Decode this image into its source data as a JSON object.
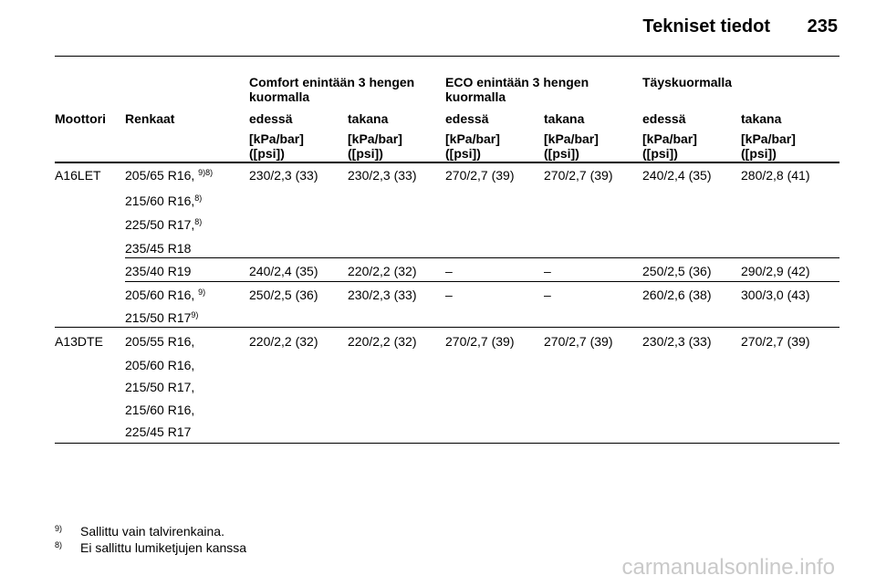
{
  "header": {
    "title": "Tekniset tiedot",
    "page_number": "235"
  },
  "table": {
    "group_headers": [
      "Comfort enintään 3 hengen kuormalla",
      "ECO enintään 3 hengen kuormalla",
      "Täyskuormalla"
    ],
    "col_labels": [
      "Moottori",
      "Renkaat",
      "edessä",
      "takana",
      "edessä",
      "takana",
      "edessä",
      "takana"
    ],
    "unit_label": "[kPa/bar] ([psi])",
    "rows": [
      {
        "engine": "A16LET",
        "tyres": [
          {
            "text": "205/65 R16, ",
            "sup": "9)8)"
          },
          {
            "text": "215/60 R16,",
            "sup": "8)"
          },
          {
            "text": "225/50 R17,",
            "sup": "8)"
          },
          {
            "text": "235/45 R18",
            "sup": ""
          }
        ],
        "values": [
          "230/2,3 (33)",
          "230/2,3 (33)",
          "270/2,7 (39)",
          "270/2,7 (39)",
          "240/2,4 (35)",
          "280/2,8 (41)"
        ]
      },
      {
        "engine": "",
        "tyres": [
          {
            "text": "235/40 R19",
            "sup": ""
          }
        ],
        "values": [
          "240/2,4 (35)",
          "220/2,2 (32)",
          "–",
          "–",
          "250/2,5 (36)",
          "290/2,9 (42)"
        ]
      },
      {
        "engine": "",
        "tyres": [
          {
            "text": "205/60 R16, ",
            "sup": "9)"
          },
          {
            "text": "215/50 R17",
            "sup": "9)"
          }
        ],
        "values": [
          "250/2,5 (36)",
          "230/2,3 (33)",
          "–",
          "–",
          "260/2,6 (38)",
          "300/3,0 (43)"
        ]
      },
      {
        "engine": "A13DTE",
        "tyres": [
          {
            "text": "205/55 R16,",
            "sup": ""
          },
          {
            "text": "205/60 R16,",
            "sup": ""
          },
          {
            "text": "215/50 R17,",
            "sup": ""
          },
          {
            "text": "215/60 R16,",
            "sup": ""
          },
          {
            "text": "225/45 R17",
            "sup": ""
          }
        ],
        "values": [
          "220/2,2 (32)",
          "220/2,2 (32)",
          "270/2,7 (39)",
          "270/2,7 (39)",
          "230/2,3 (33)",
          "270/2,7 (39)"
        ]
      }
    ]
  },
  "footnotes": [
    {
      "num": "9)",
      "text": "Sallittu vain talvirenkaina."
    },
    {
      "num": "8)",
      "text": "Ei sallittu lumiketjujen kanssa"
    }
  ],
  "watermark": "carmanualsonline.info"
}
